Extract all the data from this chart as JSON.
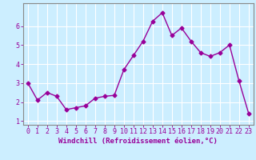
{
  "x": [
    0,
    1,
    2,
    3,
    4,
    5,
    6,
    7,
    8,
    9,
    10,
    11,
    12,
    13,
    14,
    15,
    16,
    17,
    18,
    19,
    20,
    21,
    22,
    23
  ],
  "y": [
    3.0,
    2.1,
    2.5,
    2.3,
    1.6,
    1.7,
    1.8,
    2.2,
    2.3,
    2.35,
    3.7,
    4.45,
    5.2,
    6.25,
    6.7,
    5.5,
    5.9,
    5.2,
    4.6,
    4.4,
    4.6,
    5.0,
    3.1,
    1.4
  ],
  "line_color": "#990099",
  "marker": "D",
  "markersize": 2.5,
  "linewidth": 1.0,
  "xlabel": "Windchill (Refroidissement éolien,°C)",
  "xlim": [
    -0.5,
    23.5
  ],
  "ylim": [
    0.8,
    7.2
  ],
  "yticks": [
    1,
    2,
    3,
    4,
    5,
    6
  ],
  "xticks": [
    0,
    1,
    2,
    3,
    4,
    5,
    6,
    7,
    8,
    9,
    10,
    11,
    12,
    13,
    14,
    15,
    16,
    17,
    18,
    19,
    20,
    21,
    22,
    23
  ],
  "bg_color": "#cceeff",
  "grid_color": "#ffffff",
  "tick_label_color": "#990099",
  "xlabel_color": "#990099",
  "xlabel_fontsize": 6.5,
  "tick_fontsize": 6.0,
  "spine_color": "#888888"
}
